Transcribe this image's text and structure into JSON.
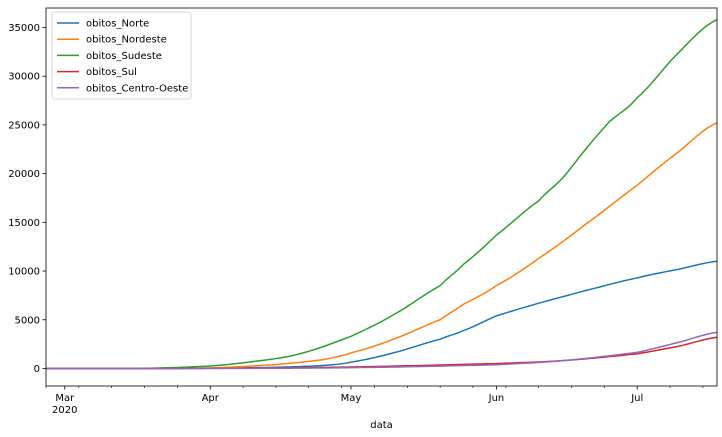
{
  "chart_data": {
    "type": "line",
    "xlabel": "data",
    "ylabel": "",
    "x_axis": {
      "type": "date",
      "range": [
        "2020-02-26",
        "2020-07-18"
      ],
      "ticks": [
        {
          "date": "2020-03-01",
          "label": "Mar",
          "sublabel": "2020"
        },
        {
          "date": "2020-04-01",
          "label": "Apr"
        },
        {
          "date": "2020-05-01",
          "label": "May"
        },
        {
          "date": "2020-06-01",
          "label": "Jun"
        },
        {
          "date": "2020-07-01",
          "label": "Jul"
        }
      ]
    },
    "y_axis": {
      "range": [
        -1800,
        37000
      ],
      "ticks": [
        0,
        5000,
        10000,
        15000,
        20000,
        25000,
        30000,
        35000
      ]
    },
    "grid": false,
    "legend": "top-left",
    "series": [
      {
        "name": "obitos_Norte",
        "color": "#1f77b4",
        "points": [
          [
            "2020-02-26",
            0
          ],
          [
            "2020-03-20",
            0
          ],
          [
            "2020-04-01",
            20
          ],
          [
            "2020-04-15",
            120
          ],
          [
            "2020-04-25",
            300
          ],
          [
            "2020-05-01",
            650
          ],
          [
            "2020-05-10",
            1600
          ],
          [
            "2020-05-20",
            3000
          ],
          [
            "2020-05-25",
            3900
          ],
          [
            "2020-06-01",
            5400
          ],
          [
            "2020-06-10",
            6700
          ],
          [
            "2020-06-20",
            8000
          ],
          [
            "2020-07-01",
            9300
          ],
          [
            "2020-07-10",
            10200
          ],
          [
            "2020-07-18",
            11000
          ]
        ]
      },
      {
        "name": "obitos_Nordeste",
        "color": "#ff7f0e",
        "points": [
          [
            "2020-02-26",
            0
          ],
          [
            "2020-03-20",
            0
          ],
          [
            "2020-04-01",
            60
          ],
          [
            "2020-04-15",
            400
          ],
          [
            "2020-04-25",
            900
          ],
          [
            "2020-05-01",
            1600
          ],
          [
            "2020-05-10",
            3000
          ],
          [
            "2020-05-20",
            5000
          ],
          [
            "2020-05-25",
            6600
          ],
          [
            "2020-06-01",
            8500
          ],
          [
            "2020-06-10",
            11300
          ],
          [
            "2020-06-20",
            14800
          ],
          [
            "2020-07-01",
            18800
          ],
          [
            "2020-07-10",
            22300
          ],
          [
            "2020-07-18",
            25200
          ]
        ]
      },
      {
        "name": "obitos_Sudeste",
        "color": "#2ca02c",
        "points": [
          [
            "2020-02-26",
            0
          ],
          [
            "2020-03-17",
            0
          ],
          [
            "2020-04-01",
            250
          ],
          [
            "2020-04-10",
            700
          ],
          [
            "2020-04-20",
            1500
          ],
          [
            "2020-05-01",
            3300
          ],
          [
            "2020-05-10",
            5500
          ],
          [
            "2020-05-20",
            8500
          ],
          [
            "2020-05-25",
            10700
          ],
          [
            "2020-06-01",
            13700
          ],
          [
            "2020-06-10",
            17200
          ],
          [
            "2020-06-15",
            19500
          ],
          [
            "2020-06-20",
            22500
          ],
          [
            "2020-06-25",
            25300
          ],
          [
            "2020-07-01",
            27800
          ],
          [
            "2020-07-10",
            32500
          ],
          [
            "2020-07-18",
            35800
          ]
        ]
      },
      {
        "name": "obitos_Sul",
        "color": "#d62728",
        "points": [
          [
            "2020-02-26",
            0
          ],
          [
            "2020-04-01",
            10
          ],
          [
            "2020-05-01",
            150
          ],
          [
            "2020-06-01",
            500
          ],
          [
            "2020-06-15",
            800
          ],
          [
            "2020-07-01",
            1500
          ],
          [
            "2020-07-10",
            2300
          ],
          [
            "2020-07-18",
            3200
          ]
        ]
      },
      {
        "name": "obitos_Centro-Oeste",
        "color": "#9467bd",
        "points": [
          [
            "2020-02-26",
            0
          ],
          [
            "2020-04-01",
            5
          ],
          [
            "2020-05-01",
            80
          ],
          [
            "2020-06-01",
            380
          ],
          [
            "2020-06-15",
            800
          ],
          [
            "2020-07-01",
            1650
          ],
          [
            "2020-07-10",
            2700
          ],
          [
            "2020-07-18",
            3700
          ]
        ]
      }
    ]
  }
}
